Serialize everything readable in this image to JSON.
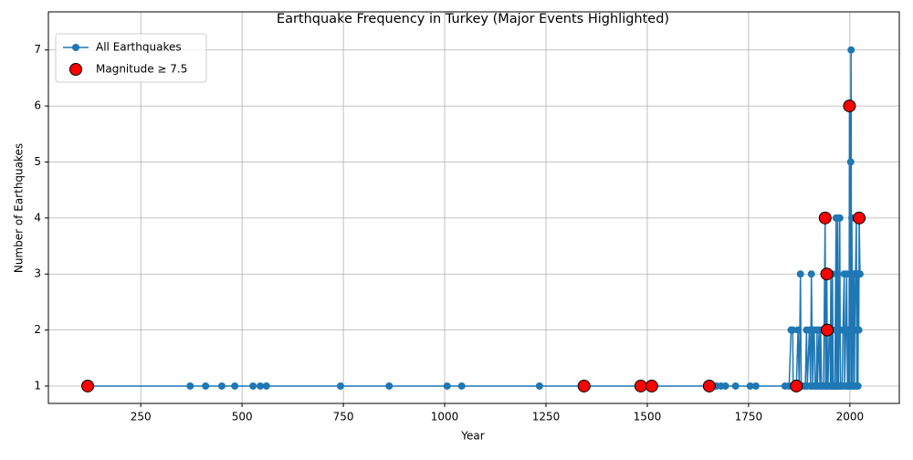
{
  "chart_data": {
    "type": "line",
    "title": "Earthquake Frequency in Turkey (Major Events Highlighted)",
    "xlabel": "Year",
    "ylabel": "Number of Earthquakes",
    "xlim": [
      22,
      2122
    ],
    "ylim": [
      0.69,
      7.68
    ],
    "xticks": [
      250,
      500,
      750,
      1000,
      1250,
      1500,
      1750,
      2000
    ],
    "yticks": [
      1,
      2,
      3,
      4,
      5,
      6,
      7
    ],
    "grid": true,
    "legend": "upper left",
    "series": [
      {
        "name": "All Earthquakes",
        "color": "#1f77b4",
        "type": "line",
        "x": [
          119,
          372,
          410,
          450,
          482,
          527,
          545,
          560,
          743,
          863,
          1006,
          1042,
          1234,
          1344,
          1484,
          1511,
          1653,
          1671,
          1682,
          1693,
          1718,
          1754,
          1768,
          1840,
          1850,
          1855,
          1859,
          1860,
          1866,
          1868,
          1872,
          1875,
          1878,
          1880,
          1885,
          1890,
          1893,
          1895,
          1900,
          1903,
          1905,
          1908,
          1910,
          1912,
          1914,
          1917,
          1919,
          1920,
          1924,
          1926,
          1928,
          1930,
          1935,
          1939,
          1940,
          1942,
          1943,
          1944,
          1945,
          1946,
          1949,
          1951,
          1952,
          1953,
          1955,
          1956,
          1957,
          1959,
          1960,
          1961,
          1963,
          1964,
          1966,
          1967,
          1968,
          1969,
          1970,
          1971,
          1972,
          1975,
          1976,
          1977,
          1979,
          1981,
          1983,
          1986,
          1987,
          1990,
          1992,
          1994,
          1995,
          1996,
          1997,
          1998,
          1999,
          2000,
          2002,
          2003,
          2004,
          2005,
          2006,
          2007,
          2008,
          2010,
          2011,
          2012,
          2014,
          2016,
          2017,
          2019,
          2020,
          2021,
          2022,
          2023,
          2025
        ],
        "values": [
          1,
          1,
          1,
          1,
          1,
          1,
          1,
          1,
          1,
          1,
          1,
          1,
          1,
          1,
          1,
          1,
          1,
          1,
          1,
          1,
          1,
          1,
          1,
          1,
          1,
          2,
          2,
          1,
          1,
          1,
          2,
          1,
          3,
          1,
          1,
          1,
          2,
          1,
          2,
          1,
          3,
          1,
          2,
          2,
          1,
          1,
          2,
          1,
          2,
          1,
          2,
          1,
          1,
          4,
          1,
          1,
          3,
          2,
          1,
          1,
          2,
          2,
          1,
          3,
          1,
          1,
          3,
          1,
          1,
          1,
          1,
          2,
          4,
          1,
          1,
          3,
          4,
          1,
          1,
          4,
          2,
          1,
          1,
          1,
          2,
          3,
          1,
          2,
          3,
          1,
          2,
          1,
          2,
          1,
          6,
          1,
          5,
          7,
          1,
          4,
          2,
          1,
          3,
          3,
          1,
          2,
          3,
          4,
          1,
          3,
          1,
          3,
          2,
          4,
          3
        ]
      },
      {
        "name": "Magnitude ≥ 7.5",
        "color": "red",
        "edgecolor": "black",
        "type": "scatter",
        "x": [
          119,
          1344,
          1484,
          1511,
          1653,
          1868,
          1939,
          1943,
          1944,
          1999,
          2023
        ],
        "values": [
          1,
          1,
          1,
          1,
          1,
          1,
          4,
          3,
          2,
          6,
          4
        ]
      }
    ]
  }
}
